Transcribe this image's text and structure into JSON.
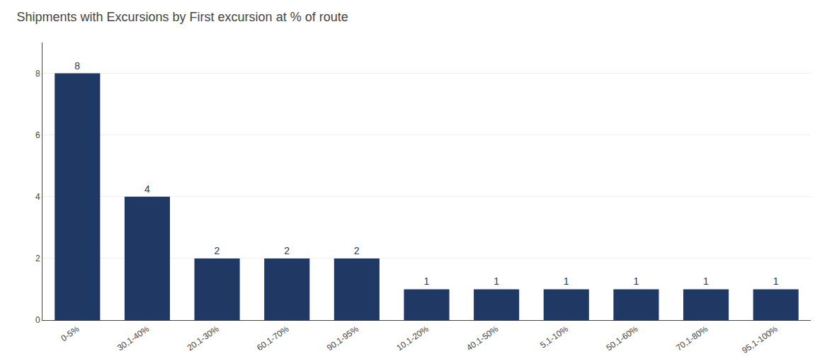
{
  "chart_data": {
    "type": "bar",
    "title": "Shipments with Excursions by First excursion at % of route",
    "categories": [
      "0-5%",
      "30,1-40%",
      "20,1-30%",
      "60,1-70%",
      "90,1-95%",
      "10,1-20%",
      "40,1-50%",
      "5,1-10%",
      "50,1-60%",
      "70,1-80%",
      "95,1-100%"
    ],
    "values": [
      8,
      4,
      2,
      2,
      2,
      1,
      1,
      1,
      1,
      1,
      1
    ],
    "color": "#1F3864",
    "ylim": [
      0,
      9.0
    ],
    "yticks": [
      0,
      2,
      4,
      6,
      8
    ],
    "grid": true,
    "data_labels": true
  }
}
